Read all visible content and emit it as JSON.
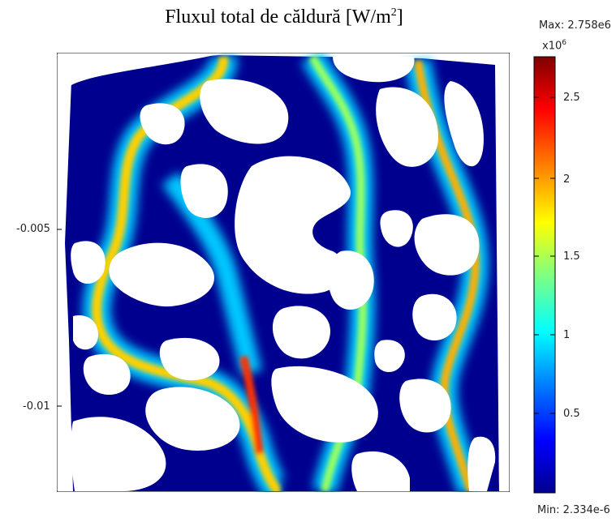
{
  "chart_data": {
    "type": "heatmap",
    "title": "Fluxul total de căldură [W/m",
    "title_sup": "2",
    "title_end": "]",
    "max_label": "Max: 2.758e6",
    "min_label": "Min: 2.334e-6",
    "colorbar_scale_base": "x10",
    "colorbar_scale_exp": "6",
    "colorbar_ticks": [
      "2.5",
      "2",
      "1.5",
      "1",
      "0.5"
    ],
    "colorbar_tick_values": [
      2.5,
      2.0,
      1.5,
      1.0,
      0.5
    ],
    "colorbar_range": [
      2.3e-12,
      2.758
    ],
    "colormap": [
      "#00008f",
      "#0000ff",
      "#0080ff",
      "#00ffff",
      "#80ff80",
      "#ffff00",
      "#ff8000",
      "#ff0000",
      "#800000"
    ],
    "y_ticks": [
      "-0.005",
      "-0.01"
    ],
    "y_tick_values": [
      -0.005,
      -0.01
    ],
    "background_color": "#00008f",
    "arrow_color": "#ff2a2a"
  }
}
